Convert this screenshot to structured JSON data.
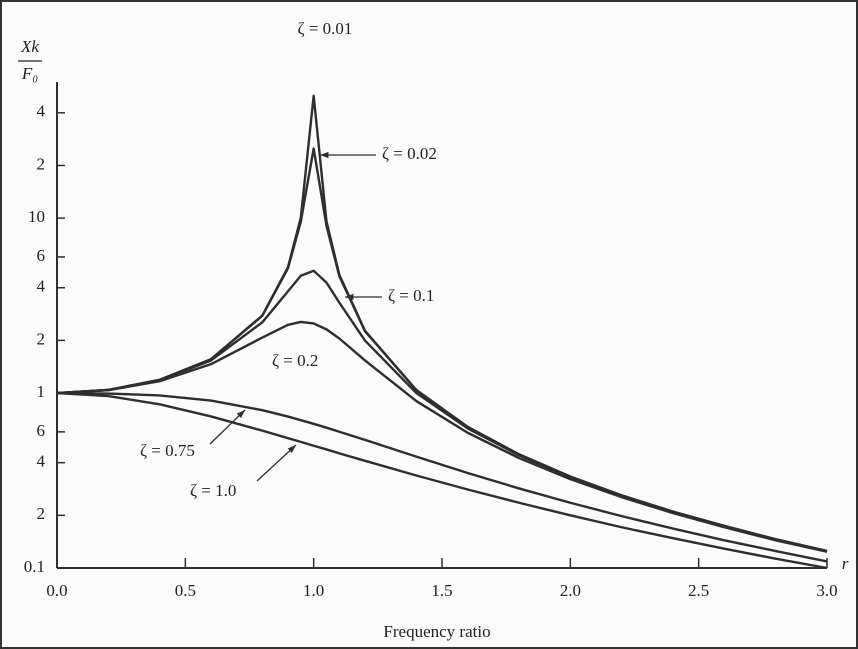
{
  "chart_data": {
    "type": "line",
    "y_label": [
      "Xk",
      "F₀"
    ],
    "x_label": "Frequency ratio",
    "x_axis_symbol": "r",
    "log_y": true,
    "color": "#2e2e2e",
    "x": [
      0,
      0.2,
      0.4,
      0.6,
      0.8,
      0.9,
      0.95,
      1.0,
      1.05,
      1.1,
      1.2,
      1.4,
      1.6,
      1.8,
      2.0,
      2.2,
      2.4,
      2.6,
      2.8,
      3.0
    ],
    "series": [
      {
        "name": "ζ = 0.01",
        "values": [
          1,
          1.042,
          1.19,
          1.562,
          2.775,
          5.24,
          10.07,
          50,
          9.558,
          4.736,
          2.269,
          1.041,
          0.641,
          0.446,
          0.333,
          0.26,
          0.21,
          0.174,
          0.146,
          0.125
        ]
      },
      {
        "name": "ζ = 0.02",
        "values": [
          1,
          1.042,
          1.19,
          1.561,
          2.767,
          5.171,
          9.556,
          25,
          9.027,
          4.661,
          2.259,
          1.04,
          0.64,
          0.446,
          0.333,
          0.26,
          0.21,
          0.174,
          0.146,
          0.125
        ]
      },
      {
        "name": "ζ = 0.1",
        "values": [
          1,
          1.041,
          1.185,
          1.536,
          2.538,
          3.821,
          4.683,
          5,
          4.279,
          3.288,
          1.995,
          1.0,
          0.628,
          0.441,
          0.33,
          0.259,
          0.209,
          0.173,
          0.146,
          0.125
        ]
      },
      {
        "name": "ζ = 0.2",
        "values": [
          1,
          1.038,
          1.169,
          1.463,
          2.076,
          2.457,
          2.549,
          2.5,
          2.313,
          2.051,
          1.536,
          0.9,
          0.593,
          0.425,
          0.322,
          0.254,
          0.206,
          0.171,
          0.144,
          0.124
        ]
      },
      {
        "name": "ζ = 0.75",
        "values": [
          1,
          0.994,
          0.969,
          0.906,
          0.798,
          0.734,
          0.7,
          0.667,
          0.634,
          0.601,
          0.54,
          0.433,
          0.349,
          0.285,
          0.236,
          0.198,
          0.168,
          0.144,
          0.125,
          0.109
        ]
      },
      {
        "name": "ζ = 1.0",
        "values": [
          1,
          0.962,
          0.862,
          0.735,
          0.61,
          0.552,
          0.526,
          0.5,
          0.476,
          0.452,
          0.41,
          0.338,
          0.281,
          0.236,
          0.2,
          0.171,
          0.148,
          0.129,
          0.113,
          0.1
        ]
      }
    ],
    "xlim": [
      0,
      3
    ],
    "xticks": [
      {
        "value": 0,
        "label": "0.0"
      },
      0.5,
      {
        "value": 1,
        "label": "1.0"
      },
      1.5,
      {
        "value": 2,
        "label": "2.0"
      },
      2.5,
      {
        "value": 3,
        "label": "3.0"
      }
    ],
    "ylim": [
      0.1,
      60
    ],
    "yticks": [
      0.1,
      {
        "value": 0.2,
        "label": "2"
      },
      {
        "value": 0.4,
        "label": "4"
      },
      {
        "value": 0.6,
        "label": "6"
      },
      1,
      {
        "value": 2,
        "label": "2"
      },
      {
        "value": 4,
        "label": "4"
      },
      {
        "value": 6,
        "label": "6"
      },
      10,
      {
        "value": 20,
        "label": "2"
      },
      {
        "value": 40,
        "label": "4"
      }
    ]
  }
}
